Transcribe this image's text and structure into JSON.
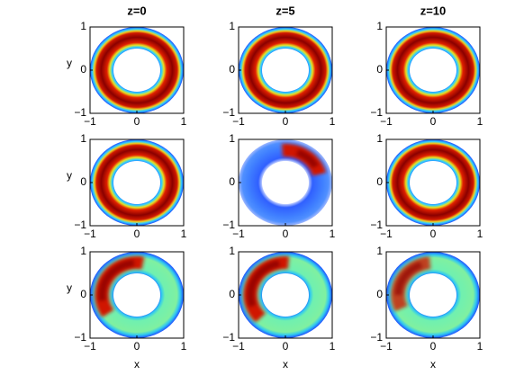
{
  "chart_data": [
    {
      "type": "heatmap",
      "title": "z=0",
      "ylabel": "y",
      "xlim": [
        -1,
        1
      ],
      "ylim": [
        -1,
        1
      ],
      "xticks": [
        {
          "value": -1,
          "label": "−1"
        },
        0,
        1
      ],
      "yticks": [
        {
          "value": -1,
          "label": "−1"
        },
        0,
        1
      ]
    },
    {
      "type": "heatmap",
      "title": "z=5",
      "xlim": [
        -1,
        1
      ],
      "ylim": [
        -1,
        1
      ],
      "xticks": [
        {
          "value": -1,
          "label": "−1"
        },
        0,
        1
      ],
      "yticks": [
        {
          "value": -1,
          "label": "−1"
        },
        0,
        1
      ]
    },
    {
      "type": "heatmap",
      "title": "z=10",
      "xlim": [
        -1,
        1
      ],
      "ylim": [
        -1,
        1
      ],
      "xticks": [
        {
          "value": -1,
          "label": "−1"
        },
        0,
        1
      ],
      "yticks": [
        {
          "value": -1,
          "label": "−1"
        },
        0,
        1
      ]
    },
    {
      "type": "heatmap",
      "ylabel": "y",
      "xlim": [
        -1,
        1
      ],
      "ylim": [
        -1,
        1
      ],
      "xticks": [
        {
          "value": -1,
          "label": "−1"
        },
        0,
        1
      ],
      "yticks": [
        {
          "value": -1,
          "label": "−1"
        },
        0,
        1
      ]
    },
    {
      "type": "heatmap",
      "xlim": [
        -1,
        1
      ],
      "ylim": [
        -1,
        1
      ],
      "xticks": [
        {
          "value": -1,
          "label": "−1"
        },
        0,
        1
      ],
      "yticks": [
        {
          "value": -1,
          "label": "−1"
        },
        0,
        1
      ]
    },
    {
      "type": "heatmap",
      "xlim": [
        -1,
        1
      ],
      "ylim": [
        -1,
        1
      ],
      "xticks": [
        {
          "value": -1,
          "label": "−1"
        },
        0,
        1
      ],
      "yticks": [
        {
          "value": -1,
          "label": "−1"
        },
        0,
        1
      ]
    },
    {
      "type": "heatmap",
      "xlabel": "x",
      "ylabel": "y",
      "xlim": [
        -1,
        1
      ],
      "ylim": [
        -1,
        1
      ],
      "xticks": [
        {
          "value": -1,
          "label": "−1"
        },
        0,
        1
      ],
      "yticks": [
        {
          "value": -1,
          "label": "−1"
        },
        0,
        1
      ]
    },
    {
      "type": "heatmap",
      "xlabel": "x",
      "xlim": [
        -1,
        1
      ],
      "ylim": [
        -1,
        1
      ],
      "xticks": [
        {
          "value": -1,
          "label": "−1"
        },
        0,
        1
      ],
      "yticks": [
        {
          "value": -1,
          "label": "−1"
        },
        0,
        1
      ]
    },
    {
      "type": "heatmap",
      "xlabel": "x",
      "xlim": [
        -1,
        1
      ],
      "ylim": [
        -1,
        1
      ],
      "xticks": [
        {
          "value": -1,
          "label": "−1"
        },
        0,
        1
      ],
      "yticks": [
        {
          "value": -1,
          "label": "−1"
        },
        0,
        1
      ]
    }
  ]
}
